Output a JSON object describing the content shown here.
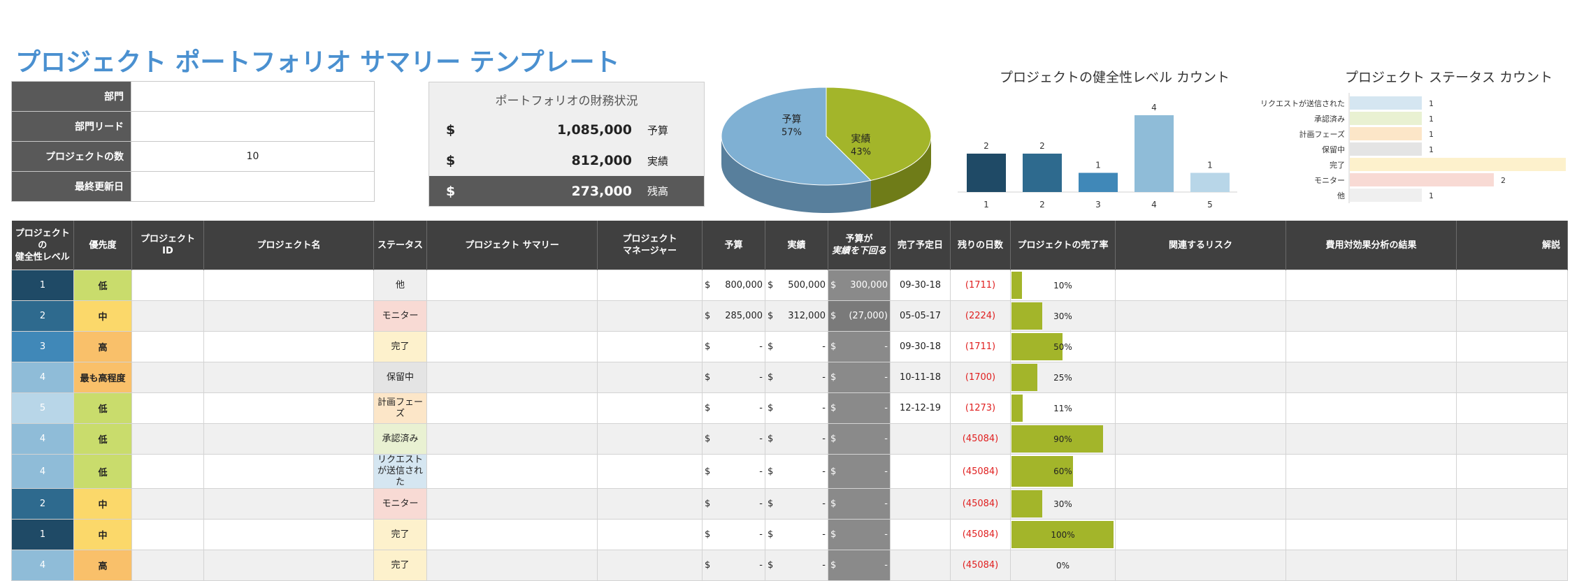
{
  "title": "プロジェクト ポートフォリオ サマリー テンプレート",
  "info": [
    {
      "label": "部門",
      "value": ""
    },
    {
      "label": "部門リード",
      "value": ""
    },
    {
      "label": "プロジェクトの数",
      "value": "10"
    },
    {
      "label": "最終更新日",
      "value": ""
    }
  ],
  "finance": {
    "title": "ポートフォリオの財務状況",
    "rows": [
      {
        "currency": "$",
        "amount": "1,085,000",
        "label": "予算"
      },
      {
        "currency": "$",
        "amount": "812,000",
        "label": "実績"
      },
      {
        "currency": "$",
        "amount": "273,000",
        "label": "残高"
      }
    ]
  },
  "colors": {
    "budget": "#7fb0d3",
    "actual": "#a3b52a",
    "health": [
      "#1f4a66",
      "#2e6a8e",
      "#4088b8",
      "#8fbcd8",
      "#b8d6e8"
    ],
    "prio_low": "#c9dc6c",
    "prio_mid": "#fbd86a",
    "prio_high": "#f9c06a",
    "status": {
      "他": "#efefef",
      "モニター": "#f8dad4",
      "完了": "#fdf1cc",
      "保留中": "#e4e4e4",
      "計画フェーズ": "#fce6c8",
      "承認済み": "#e9f1d2",
      "リクエストが送信された": "#d5e6f1"
    }
  },
  "chart_data": [
    {
      "type": "pie",
      "title": "",
      "slices": [
        {
          "label": "予算",
          "pct_label": "57%",
          "value": 57
        },
        {
          "label": "実績",
          "pct_label": "43%",
          "value": 43
        }
      ]
    },
    {
      "type": "bar",
      "title": "プロジェクトの健全性レベル カウント",
      "categories": [
        "1",
        "2",
        "3",
        "4",
        "5"
      ],
      "values": [
        2,
        2,
        1,
        4,
        1
      ],
      "ylim": [
        0,
        4
      ]
    },
    {
      "type": "bar",
      "orientation": "horizontal",
      "title": "プロジェクト ステータス カウント",
      "categories": [
        "リクエストが送信された",
        "承認済み",
        "計画フェーズ",
        "保留中",
        "完了",
        "モニター",
        "他"
      ],
      "values": [
        1,
        1,
        1,
        1,
        3,
        2,
        1
      ],
      "value_labels": [
        "1",
        "1",
        "1",
        "1",
        "",
        "2",
        "1"
      ]
    }
  ],
  "table": {
    "headers": {
      "health": [
        "プロジェクトの",
        "健全性レベル"
      ],
      "priority": "優先度",
      "id": "プロジェクト ID",
      "name": "プロジェクト名",
      "status": "ステータス",
      "summary": "プロジェクト サマリー",
      "manager": [
        "プロジェクト",
        "マネージャー"
      ],
      "budget": "予算",
      "actual": "実績",
      "under": [
        "予算が",
        "実績を下回る"
      ],
      "due": "完了予定日",
      "days": "残りの日数",
      "pct": "プロジェクトの完了率",
      "risk": "関連するリスク",
      "cba": "費用対効果分析の結果",
      "notes": "解説"
    },
    "rows": [
      {
        "health": "1",
        "priority": "低",
        "status": "他",
        "budget": "800,000",
        "actual": "500,000",
        "under": "300,000",
        "due": "09-30-18",
        "days": "(1711)",
        "pct": "10%",
        "pct_val": 0.1
      },
      {
        "health": "2",
        "priority": "中",
        "status": "モニター",
        "budget": "285,000",
        "actual": "312,000",
        "under": "(27,000)",
        "due": "05-05-17",
        "days": "(2224)",
        "pct": "30%",
        "pct_val": 0.3
      },
      {
        "health": "3",
        "priority": "高",
        "status": "完了",
        "budget": "-",
        "actual": "-",
        "under": "-",
        "due": "09-30-18",
        "days": "(1711)",
        "pct": "50%",
        "pct_val": 0.5
      },
      {
        "health": "4",
        "priority": "最も高程度",
        "status": "保留中",
        "budget": "-",
        "actual": "-",
        "under": "-",
        "due": "10-11-18",
        "days": "(1700)",
        "pct": "25%",
        "pct_val": 0.25
      },
      {
        "health": "5",
        "priority": "低",
        "status": "計画フェーズ",
        "budget": "-",
        "actual": "-",
        "under": "-",
        "due": "12-12-19",
        "days": "(1273)",
        "pct": "11%",
        "pct_val": 0.11
      },
      {
        "health": "4",
        "priority": "低",
        "status": "承認済み",
        "budget": "-",
        "actual": "-",
        "under": "-",
        "due": "",
        "days": "(45084)",
        "pct": "90%",
        "pct_val": 0.9
      },
      {
        "health": "4",
        "priority": "低",
        "status": "リクエストが送信された",
        "budget": "-",
        "actual": "-",
        "under": "-",
        "due": "",
        "days": "(45084)",
        "pct": "60%",
        "pct_val": 0.6
      },
      {
        "health": "2",
        "priority": "中",
        "status": "モニター",
        "budget": "-",
        "actual": "-",
        "under": "-",
        "due": "",
        "days": "(45084)",
        "pct": "30%",
        "pct_val": 0.3
      },
      {
        "health": "1",
        "priority": "中",
        "status": "完了",
        "budget": "-",
        "actual": "-",
        "under": "-",
        "due": "",
        "days": "(45084)",
        "pct": "100%",
        "pct_val": 1.0
      },
      {
        "health": "4",
        "priority": "高",
        "status": "完了",
        "budget": "-",
        "actual": "-",
        "under": "-",
        "due": "",
        "days": "(45084)",
        "pct": "0%",
        "pct_val": 0.0
      }
    ],
    "currency": "$"
  }
}
